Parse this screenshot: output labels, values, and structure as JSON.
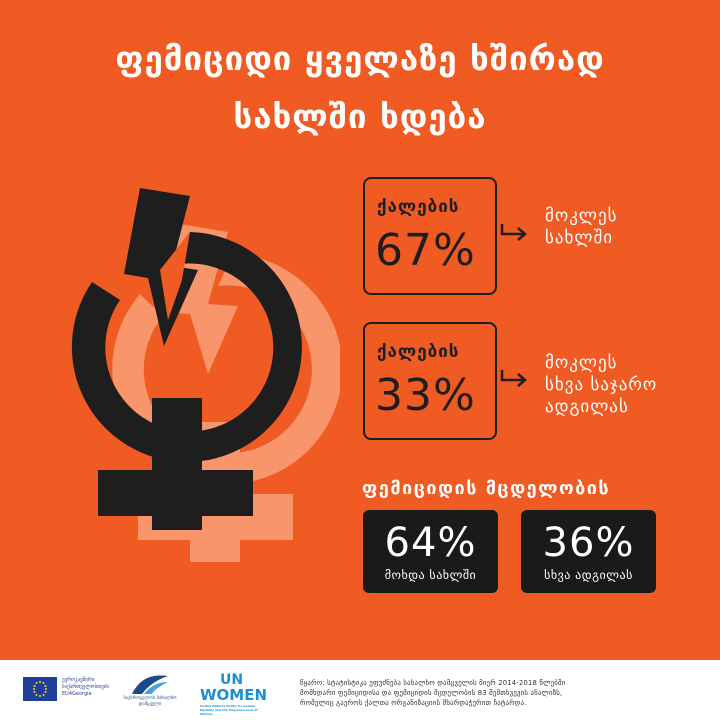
{
  "header": {
    "title_line1": "ფემიციდი ყველაზე ხშირად",
    "title_line2": "სახლში ხდება"
  },
  "stats": [
    {
      "label": "ქალების",
      "value": "67%",
      "description_line1": "მოკლეს",
      "description_line2": "სახლში",
      "description_line3": ""
    },
    {
      "label": "ქალების",
      "value": "33%",
      "description_line1": "მოკლეს",
      "description_line2": "სხვა საჯარო",
      "description_line3": "ადგილას"
    }
  ],
  "attempts": {
    "heading": "ფემიციდის მცდელობის",
    "boxes": [
      {
        "value": "64%",
        "caption": "მოხდა სახლში"
      },
      {
        "value": "36%",
        "caption": "სხვა ადგილას"
      }
    ]
  },
  "footer": {
    "eu_logo_text": "ევროკავშირი საქართველოსთვის",
    "eu_logo_subtext": "EU4Georgia",
    "gov_logo_text": "საქართველოს სახალხო დამცველი",
    "unwomen_un": "UN",
    "unwomen_women": "WOMEN",
    "unwomen_sub": "United Nations Entity for Gender Equality and the Empowerment of Women",
    "source_line1": "წყარო: სტატისტიკა ეფუძნება სახალხო დამცველის მიერ 2014-2018 წლებში",
    "source_line2": "მომხდარი ფემიციდისა და ფემიციდის მცდელობის 83 შემთხვევის ანალიზს,",
    "source_line3": "რომელიც გაეროს ქალთა ორგანიზაციის მხარდაჭერით ჩატარდა."
  },
  "colors": {
    "background": "#f05a23",
    "dark": "#1e1e1e",
    "shadow_symbol": "#f8956a",
    "text_light": "#ffffff"
  }
}
